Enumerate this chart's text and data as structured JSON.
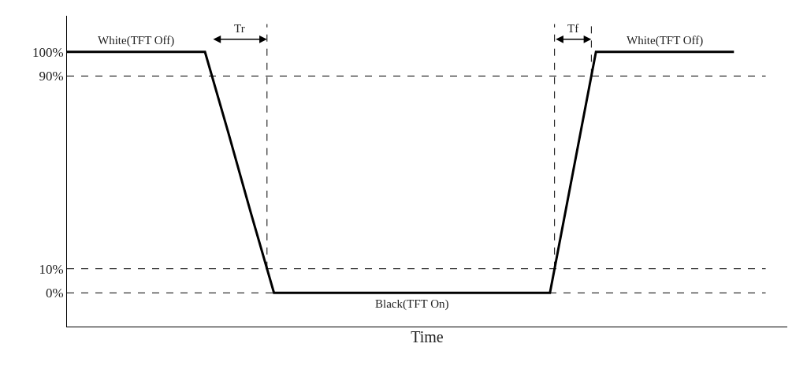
{
  "chart_data": {
    "type": "line",
    "xlabel": "Time",
    "categories": [
      null,
      null,
      null,
      null,
      null,
      null,
      null,
      null,
      null,
      null,
      null,
      null,
      null,
      null,
      null,
      null,
      null,
      null,
      null,
      null,
      null,
      null,
      null,
      null,
      null,
      null,
      null,
      null,
      null,
      null
    ],
    "series": [
      {
        "color": "#000000",
        "values": [
          100,
          100,
          100,
          100,
          100,
          100,
          100,
          67,
          33,
          0,
          0,
          0,
          0,
          0,
          0,
          0,
          0,
          0,
          0,
          0,
          0,
          0,
          50,
          100,
          100,
          100,
          100,
          100,
          100,
          100
        ]
      }
    ],
    "ylim": [
      -14,
      115
    ],
    "yticks": [
      {
        "value": 0,
        "label": "0%"
      },
      {
        "value": 10,
        "label": "10%"
      },
      {
        "value": 90,
        "label": "90%"
      },
      {
        "value": 100,
        "label": "100%"
      }
    ],
    "tick_labels": "y",
    "marker": "none",
    "line_style": "solid",
    "ref_lines": [
      {
        "axis": "y",
        "value": 90,
        "line_style": "dashed",
        "color": "#000000"
      },
      {
        "axis": "y",
        "value": 10,
        "line_style": "dashed",
        "color": "#000000"
      },
      {
        "axis": "y",
        "value": 0,
        "line_style": "dashed",
        "color": "#000000"
      }
    ],
    "annotations": [
      "White(TFT Off)",
      "Tr",
      "Tf",
      "White(TFT Off)",
      "Black(TFT On)"
    ]
  }
}
